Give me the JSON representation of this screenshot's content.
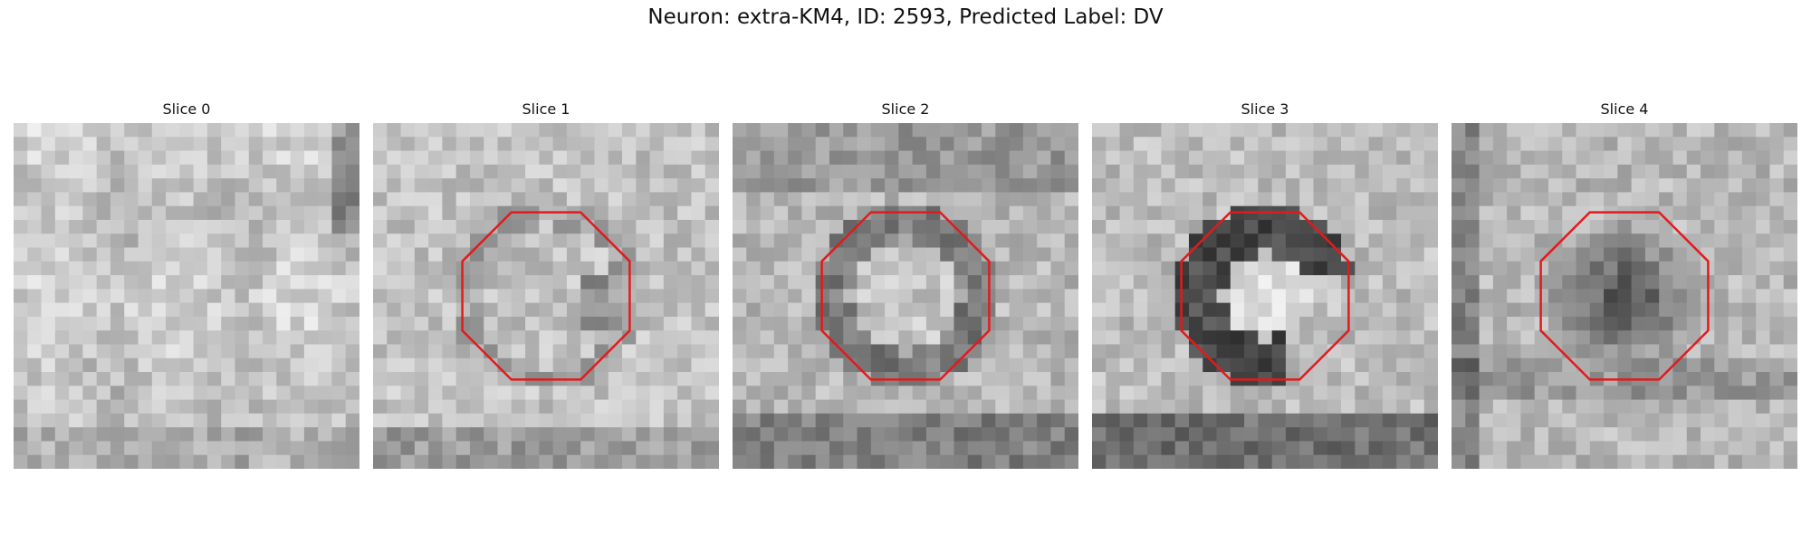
{
  "figure": {
    "title": "Neuron: extra-KM4, ID: 2593, Predicted Label: DV"
  },
  "roi_color": "#e31a1c",
  "slices": [
    {
      "label": "Slice 0",
      "has_roi": false,
      "image_description": "grayscale microscopy patch, mostly light gray noisy texture"
    },
    {
      "label": "Slice 1",
      "has_roi": true,
      "image_description": "grayscale microscopy patch with faint ring-like structure inside red octagon outline"
    },
    {
      "label": "Slice 2",
      "has_roi": true,
      "image_description": "grayscale microscopy patch with darker ring and brighter center inside red octagon outline"
    },
    {
      "label": "Slice 3",
      "has_roi": true,
      "image_description": "grayscale microscopy patch with strong dark crescent ring and bright center inside red octagon outline"
    },
    {
      "label": "Slice 4",
      "has_roi": true,
      "image_description": "grayscale microscopy patch with dark blob inside red octagon outline"
    }
  ]
}
